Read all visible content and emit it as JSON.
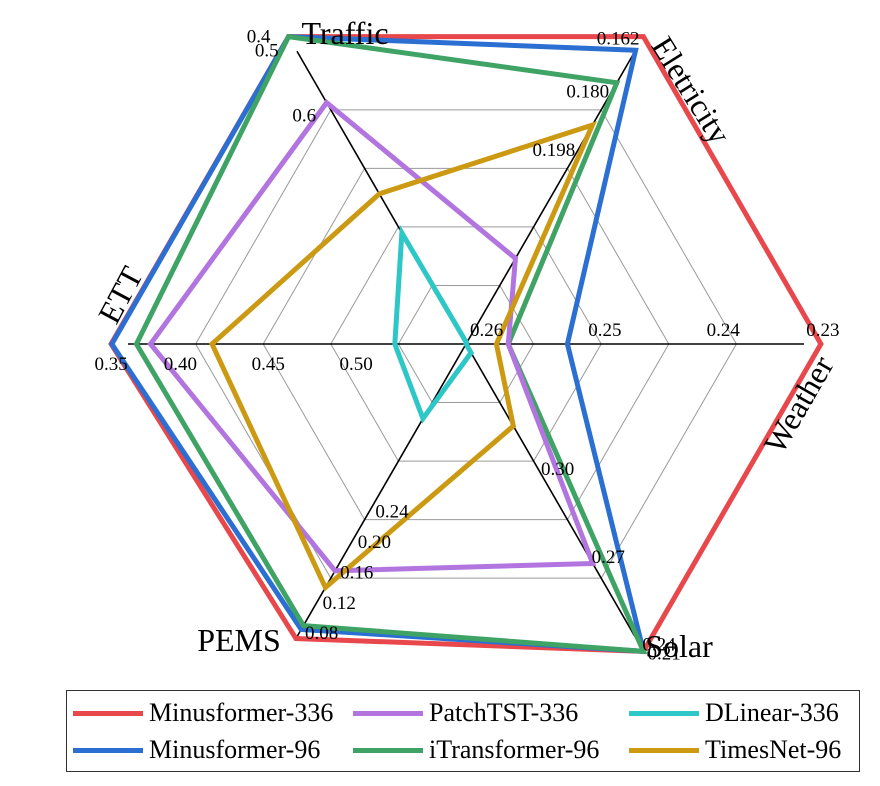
{
  "chart_data": {
    "type": "radar",
    "title": "",
    "axes": [
      {
        "name": "Traffic",
        "ticks": [
          "0.4",
          "0.5",
          "0.6"
        ],
        "tick_values": [
          0.4,
          0.5,
          0.6
        ]
      },
      {
        "name": "Eletricity",
        "ticks": [
          "0.162",
          "0.180",
          "0.198"
        ],
        "tick_values": [
          0.162,
          0.18,
          0.198
        ]
      },
      {
        "name": "Weather",
        "ticks": [
          "0.23",
          "0.24",
          "0.25",
          "0.26"
        ],
        "tick_values": [
          0.23,
          0.24,
          0.25,
          0.26
        ]
      },
      {
        "name": "Solar",
        "ticks": [
          "0.21",
          "0.24",
          "0.27",
          "0.30"
        ],
        "tick_values": [
          0.21,
          0.24,
          0.27,
          0.3
        ]
      },
      {
        "name": "PEMS",
        "ticks": [
          "0.08",
          "0.12",
          "0.16",
          "0.20",
          "0.24"
        ],
        "tick_values": [
          0.08,
          0.12,
          0.16,
          0.2,
          0.24
        ]
      },
      {
        "name": "ETT",
        "ticks": [
          "0.35",
          "0.40",
          "0.45",
          "0.50"
        ],
        "tick_values": [
          0.35,
          0.4,
          0.45,
          0.5
        ]
      }
    ],
    "series": [
      {
        "name": "Minusformer-336",
        "color": "#e8474b",
        "values": [
          0.366,
          0.153,
          0.226,
          0.19,
          0.073,
          0.345
        ]
      },
      {
        "name": "Minusformer-96",
        "color": "#2a6fd1",
        "values": [
          0.397,
          0.168,
          0.253,
          0.214,
          0.085,
          0.361
        ]
      },
      {
        "name": "iTransformer-96",
        "color": "#3ea364",
        "values": [
          0.428,
          0.178,
          0.258,
          0.218,
          0.09,
          0.375
        ]
      },
      {
        "name": "PatchTST-336",
        "color": "#b274de",
        "values": [
          0.58,
          0.232,
          0.258,
          0.267,
          0.162,
          0.383
        ]
      },
      {
        "name": "DLinear-336",
        "color": "#2cc7c6",
        "values": [
          0.78,
          0.258,
          0.268,
          0.339,
          0.362,
          0.522
        ]
      },
      {
        "name": "TimesNet-96",
        "color": "#cc9a12",
        "values": [
          0.72,
          0.191,
          0.259,
          0.314,
          0.14,
          0.418
        ]
      }
    ],
    "legend_position": "bottom",
    "grid": true
  },
  "legend": {
    "items": [
      {
        "label": "Minusformer-336",
        "color": "#e8474b"
      },
      {
        "label": "PatchTST-336",
        "color": "#b274de"
      },
      {
        "label": "DLinear-336",
        "color": "#2cc7c6"
      },
      {
        "label": "Minusformer-96",
        "color": "#2a6fd1"
      },
      {
        "label": "iTransformer-96",
        "color": "#3ea364"
      },
      {
        "label": "TimesNet-96",
        "color": "#cc9a12"
      }
    ]
  }
}
